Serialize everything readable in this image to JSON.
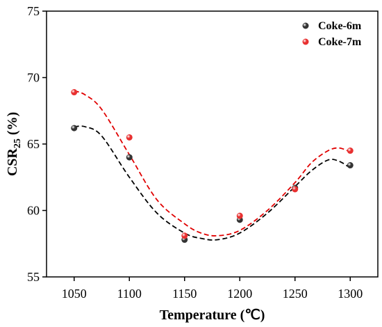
{
  "chart_data": {
    "type": "scatter",
    "xlabel": "Temperature (℃)",
    "ylabel_main": "CSR",
    "ylabel_sub": "25",
    "ylabel_unit": " (%)",
    "xlim": [
      1025,
      1325
    ],
    "ylim": [
      55,
      75
    ],
    "x_ticks": [
      1050,
      1100,
      1150,
      1200,
      1250,
      1300
    ],
    "y_ticks": [
      55,
      60,
      65,
      70,
      75
    ],
    "grid": false,
    "legend_position": "top-right",
    "x": [
      1050,
      1100,
      1150,
      1200,
      1250,
      1300
    ],
    "series": [
      {
        "name": "Coke-6m",
        "color": "#333333",
        "fit_color": "#000000",
        "values": [
          66.2,
          64.0,
          57.8,
          59.3,
          61.7,
          63.4
        ],
        "fit": {
          "x": [
            1050,
            1060,
            1075,
            1100,
            1125,
            1150,
            1165,
            1180,
            1200,
            1225,
            1250,
            1265,
            1280,
            1290,
            1300
          ],
          "y": [
            66.3,
            66.3,
            65.6,
            62.5,
            59.8,
            58.3,
            57.9,
            57.8,
            58.3,
            59.8,
            61.8,
            63.0,
            63.8,
            63.7,
            63.2
          ]
        }
      },
      {
        "name": "Coke-7m",
        "color": "#e83030",
        "fit_color": "#e00000",
        "values": [
          68.9,
          65.5,
          58.1,
          59.6,
          61.6,
          64.5
        ],
        "fit": {
          "x": [
            1050,
            1060,
            1075,
            1100,
            1125,
            1150,
            1165,
            1180,
            1200,
            1225,
            1250,
            1265,
            1280,
            1290,
            1300
          ],
          "y": [
            69.0,
            68.7,
            67.6,
            64.2,
            60.8,
            59.0,
            58.3,
            58.1,
            58.5,
            60.0,
            62.1,
            63.6,
            64.5,
            64.7,
            64.4
          ]
        }
      }
    ]
  }
}
